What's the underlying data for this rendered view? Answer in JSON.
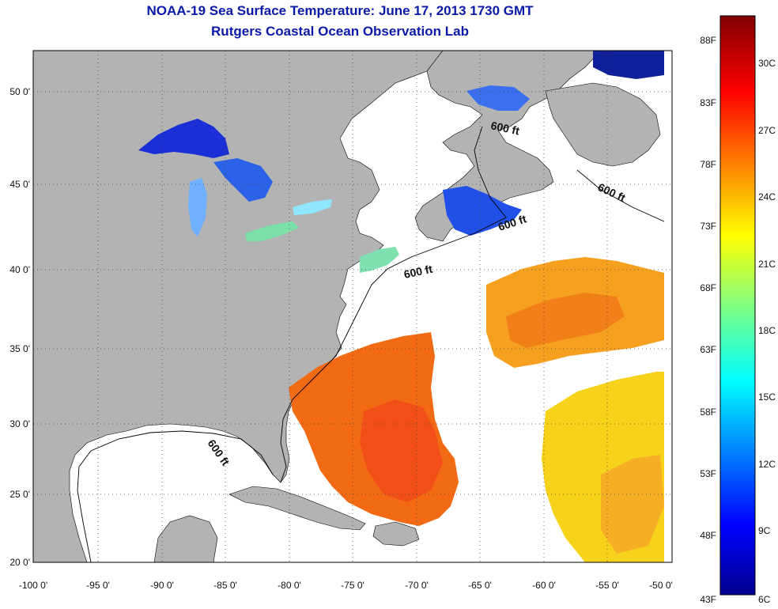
{
  "title": "NOAA-19 Sea Surface Temperature:  June 17, 2013 1730 GMT",
  "subtitle": "Rutgers Coastal Ocean Observation Lab",
  "map": {
    "lon_labels": [
      "-100 0'",
      "-95 0'",
      "-90 0'",
      "-85 0'",
      "-80 0'",
      "-75 0'",
      "-70 0'",
      "-65 0'",
      "-60 0'",
      "-55 0'",
      "-50 0'"
    ],
    "lat_labels": [
      "50 0'",
      "45 0'",
      "40 0'",
      "35 0'",
      "30 0'",
      "25 0'",
      "20 0'"
    ],
    "contour_labels": [
      "600 ft",
      "600 ft",
      "600 ft",
      "600 ft",
      "600 ft"
    ],
    "land_color": "#b3b3b3",
    "ocean_color": "#ffffff"
  },
  "colorbar": {
    "fahrenheit_labels": [
      "88F",
      "83F",
      "78F",
      "73F",
      "68F",
      "63F",
      "58F",
      "53F",
      "48F",
      "43F"
    ],
    "celsius_labels": [
      "30C",
      "27C",
      "24C",
      "21C",
      "18C",
      "15C",
      "12C",
      "9C",
      "6C"
    ],
    "colormap": "jet"
  }
}
